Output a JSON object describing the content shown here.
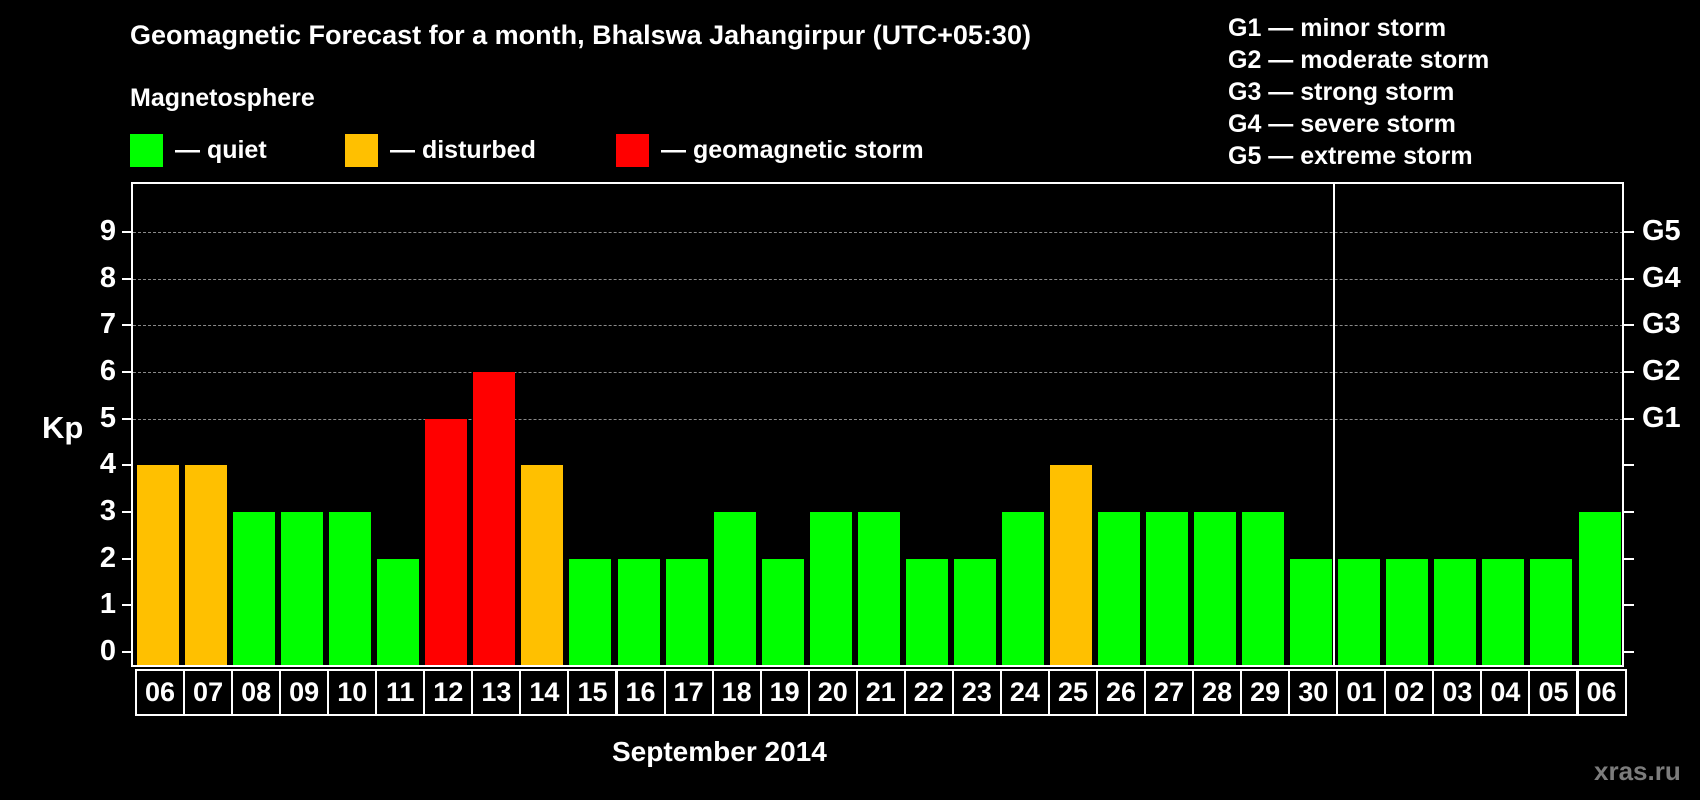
{
  "header": {
    "title": "Geomagnetic Forecast for a month, Bhalswa Jahangirpur (UTC+05:30)",
    "subtitle": "Magnetosphere"
  },
  "legend": {
    "items": [
      {
        "label": "— quiet",
        "color": "#00ff00"
      },
      {
        "label": "— disturbed",
        "color": "#ffc000"
      },
      {
        "label": "— geomagnetic storm",
        "color": "#ff0000"
      }
    ]
  },
  "storm_scale": [
    "G1 — minor storm",
    "G2 — moderate storm",
    "G3 — strong storm",
    "G4 — severe storm",
    "G5 — extreme storm"
  ],
  "axes": {
    "y_label": "Kp",
    "y_ticks": [
      "0",
      "1",
      "2",
      "3",
      "4",
      "5",
      "6",
      "7",
      "8",
      "9"
    ],
    "g_ticks": [
      {
        "kp": 5,
        "label": "G1"
      },
      {
        "kp": 6,
        "label": "G2"
      },
      {
        "kp": 7,
        "label": "G3"
      },
      {
        "kp": 8,
        "label": "G4"
      },
      {
        "kp": 9,
        "label": "G5"
      }
    ],
    "x_title": "September 2014"
  },
  "watermark": "xras.ru",
  "colors": {
    "quiet": "#00ff00",
    "disturbed": "#ffc000",
    "storm": "#ff0000",
    "grid": "#8a8a8a",
    "background": "#000000"
  },
  "chart_data": {
    "type": "bar",
    "title": "Geomagnetic Forecast for a month, Bhalswa Jahangirpur (UTC+05:30)",
    "xlabel": "September 2014",
    "ylabel": "Kp",
    "ylim": [
      0,
      9
    ],
    "grid": true,
    "secondary_y_labels": {
      "5": "G1",
      "6": "G2",
      "7": "G3",
      "8": "G4",
      "9": "G5"
    },
    "legend": [
      "quiet",
      "disturbed",
      "geomagnetic storm"
    ],
    "month_separator_after": "30",
    "categories": [
      "06",
      "07",
      "08",
      "09",
      "10",
      "11",
      "12",
      "13",
      "14",
      "15",
      "16",
      "17",
      "18",
      "19",
      "20",
      "21",
      "22",
      "23",
      "24",
      "25",
      "26",
      "27",
      "28",
      "29",
      "30",
      "01",
      "02",
      "03",
      "04",
      "05",
      "06"
    ],
    "values": [
      4,
      4,
      3,
      3,
      3,
      2,
      5,
      6,
      4,
      2,
      2,
      2,
      3,
      2,
      3,
      3,
      2,
      2,
      3,
      4,
      3,
      3,
      3,
      3,
      2,
      2,
      2,
      2,
      2,
      2,
      3
    ],
    "status": [
      "disturbed",
      "disturbed",
      "quiet",
      "quiet",
      "quiet",
      "quiet",
      "storm",
      "storm",
      "disturbed",
      "quiet",
      "quiet",
      "quiet",
      "quiet",
      "quiet",
      "quiet",
      "quiet",
      "quiet",
      "quiet",
      "quiet",
      "disturbed",
      "quiet",
      "quiet",
      "quiet",
      "quiet",
      "quiet",
      "quiet",
      "quiet",
      "quiet",
      "quiet",
      "quiet",
      "quiet"
    ]
  }
}
